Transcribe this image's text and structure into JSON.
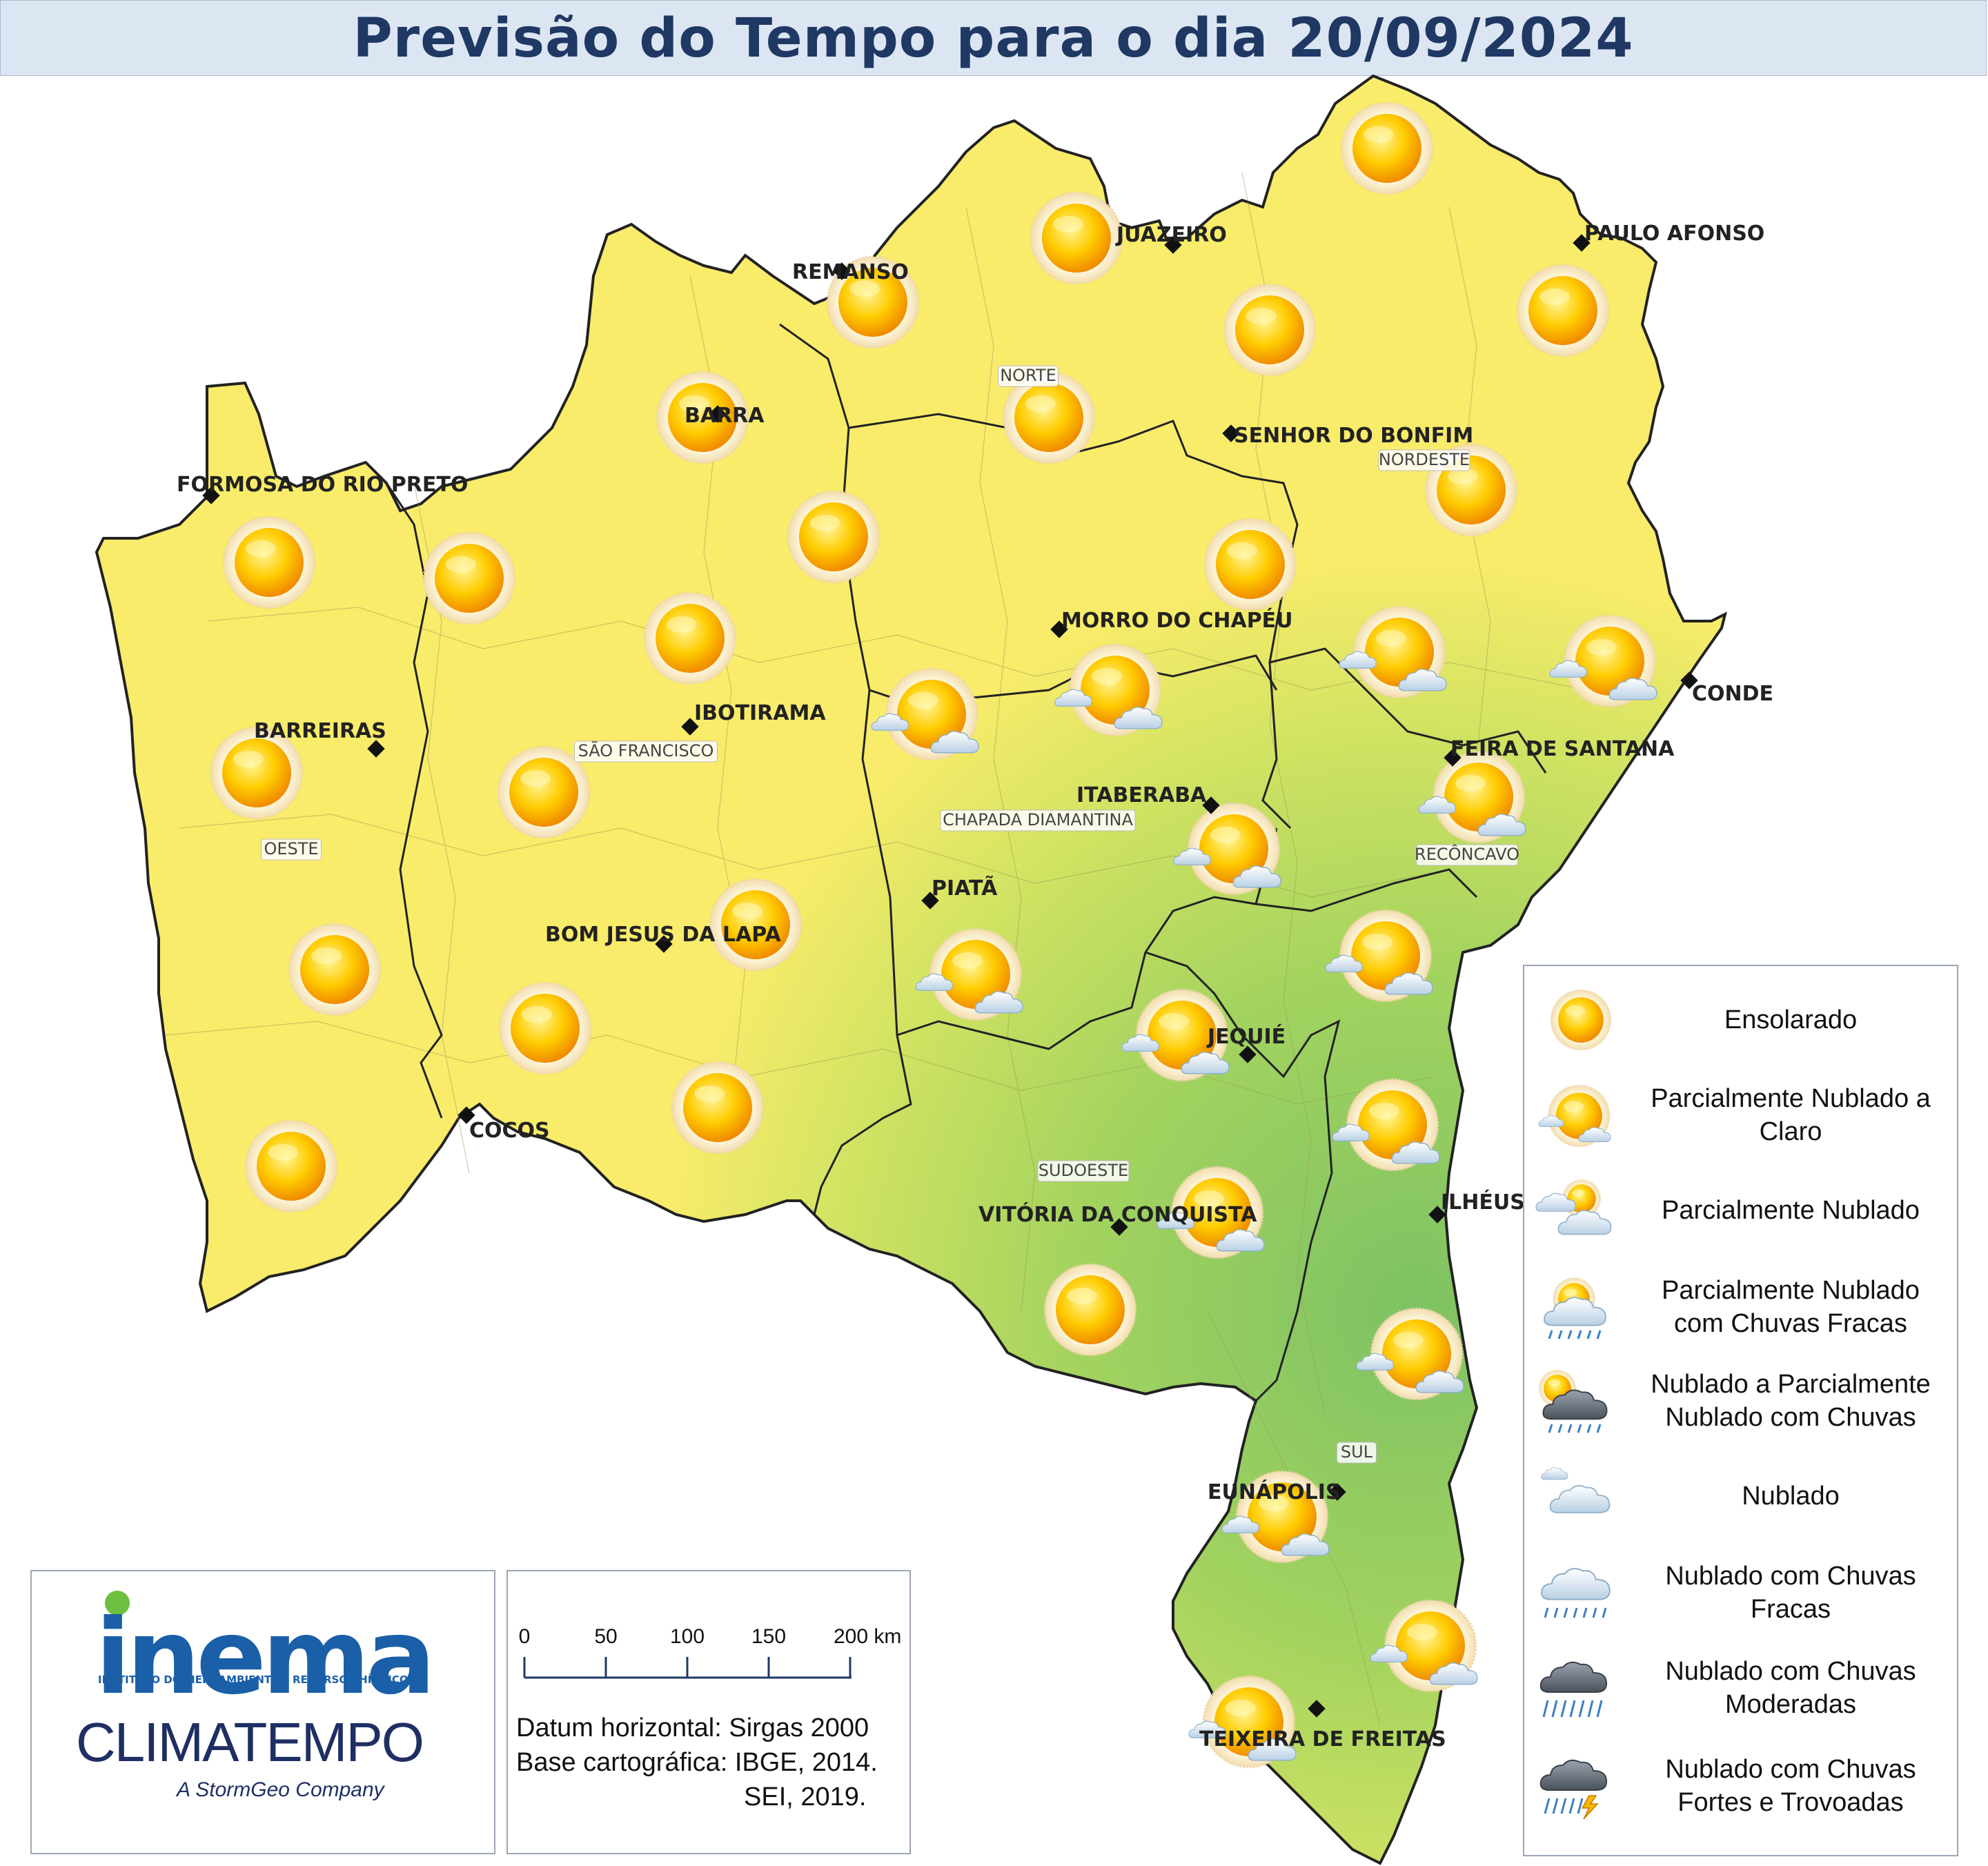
{
  "title": "Previsão do Tempo para o dia 20/09/2024",
  "colors": {
    "title_text": "#1f3864",
    "title_bg": "#dce6f2",
    "dry_fill": "#f9ec6a",
    "humid_fill": "#8fcb6a",
    "border": "#222222"
  },
  "cities": [
    {
      "name": "JUAZEIRO"
    },
    {
      "name": "PAULO AFONSO"
    },
    {
      "name": "REMANSO"
    },
    {
      "name": "BARRA"
    },
    {
      "name": "SENHOR DO BONFIM"
    },
    {
      "name": "FORMOSA DO RIO PRETO"
    },
    {
      "name": "MORRO DO CHAPÉU"
    },
    {
      "name": "CONDE"
    },
    {
      "name": "IBOTIRAMA"
    },
    {
      "name": "BARREIRAS"
    },
    {
      "name": "FEIRA DE SANTANA"
    },
    {
      "name": "ITABERABA"
    },
    {
      "name": "PIATÃ"
    },
    {
      "name": "BOM JESUS DA LAPA"
    },
    {
      "name": "JEQUIÉ"
    },
    {
      "name": "COCOS"
    },
    {
      "name": "ILHÉUS"
    },
    {
      "name": "VITÓRIA DA CONQUISTA"
    },
    {
      "name": "EUNÁPOLIS"
    },
    {
      "name": "TEIXEIRA DE FREITAS"
    }
  ],
  "regions": [
    "NORTE",
    "NORDESTE",
    "SÃO FRANCISCO",
    "OESTE",
    "CHAPADA DIAMANTINA",
    "RECÔNCAVO",
    "SUDOESTE",
    "SUL"
  ],
  "forecast_icons": [
    "sunny",
    "sunny",
    "sunny",
    "sunny",
    "sunny",
    "sunny",
    "sunny",
    "sunny",
    "sunny",
    "sunny",
    "sunny",
    "sunny",
    "sunny",
    "sunny",
    "sunny",
    "sunny",
    "sunny",
    "sunny",
    "sunny",
    "sunny",
    "sunny",
    "partly-cloudy-clear",
    "partly-cloudy-clear",
    "partly-cloudy-clear",
    "partly-cloudy-clear",
    "partly-cloudy-clear",
    "partly-cloudy-clear",
    "partly-cloudy-clear",
    "partly-cloudy-clear",
    "partly-cloudy-clear",
    "partly-cloudy-clear",
    "partly-cloudy-clear",
    "partly-cloudy-clear",
    "partly-cloudy-clear",
    "partly-cloudy-clear",
    "partly-cloudy-clear"
  ],
  "legend": [
    {
      "icon": "sunny",
      "label": "Ensolarado"
    },
    {
      "icon": "partly-cloudy-clear",
      "label": "Parcialmente Nublado a Claro"
    },
    {
      "icon": "partly-cloudy",
      "label": "Parcialmente Nublado"
    },
    {
      "icon": "partly-cloudy-light-rain",
      "label": "Parcialmente Nublado com Chuvas Fracas"
    },
    {
      "icon": "cloudy-rain",
      "label": "Nublado a Parcialmente Nublado com Chuvas"
    },
    {
      "icon": "cloudy",
      "label": "Nublado"
    },
    {
      "icon": "cloudy-light-rain",
      "label": "Nublado com Chuvas Fracas"
    },
    {
      "icon": "cloudy-moderate-rain",
      "label": "Nublado com Chuvas Moderadas"
    },
    {
      "icon": "thunderstorm",
      "label": "Nublado com Chuvas Fortes e Trovoadas"
    }
  ],
  "logos": {
    "inema": "inema",
    "inema_subtitle": "INSTITUTO DO MEIO AMBIENTE E RECURSOS HÍDRICOS",
    "climatempo": "CLIMATEMPO",
    "climatempo_subtitle": "A StormGeo Company"
  },
  "scale": {
    "ticks": [
      "0",
      "50",
      "100",
      "150",
      "200 km"
    ],
    "datum": "Datum horizontal: Sirgas 2000",
    "base_line1": "Base cartográfica: IBGE, 2014.",
    "base_line2": "SEI, 2019."
  }
}
